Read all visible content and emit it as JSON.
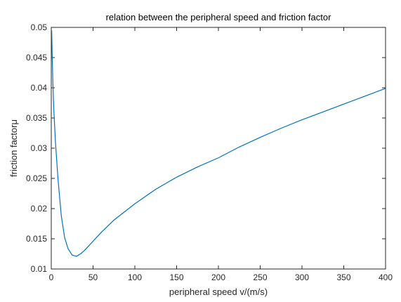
{
  "chart_data": {
    "type": "line",
    "title": "relation between the peripheral speed and friction factor",
    "xlabel": "peripheral speed v/(m/s)",
    "ylabel": "friction factorμ",
    "xlim": [
      0,
      400
    ],
    "ylim": [
      0.01,
      0.05
    ],
    "xticks": [
      0,
      50,
      100,
      150,
      200,
      250,
      300,
      350,
      400
    ],
    "yticks": [
      0.01,
      0.015,
      0.02,
      0.025,
      0.03,
      0.035,
      0.04,
      0.045,
      0.05
    ],
    "xtick_labels": [
      "0",
      "50",
      "100",
      "150",
      "200",
      "250",
      "300",
      "350",
      "400"
    ],
    "ytick_labels": [
      "0.01",
      "0.015",
      "0.02",
      "0.025",
      "0.03",
      "0.035",
      "0.04",
      "0.045",
      "0.05"
    ],
    "grid": false,
    "series": [
      {
        "color": "#0072bd",
        "x": [
          0.5,
          1,
          2,
          3,
          5,
          8,
          12,
          16,
          20,
          25,
          30,
          35,
          40,
          50,
          60,
          75,
          100,
          125,
          150,
          175,
          200,
          225,
          250,
          275,
          300,
          325,
          350,
          375,
          400
        ],
        "y": [
          0.0495,
          0.046,
          0.0405,
          0.0365,
          0.031,
          0.025,
          0.0188,
          0.0152,
          0.0134,
          0.0123,
          0.0121,
          0.0125,
          0.0131,
          0.0146,
          0.0161,
          0.0181,
          0.0208,
          0.0232,
          0.0252,
          0.0269,
          0.0284,
          0.0302,
          0.0318,
          0.0333,
          0.0347,
          0.036,
          0.0373,
          0.0386,
          0.0399
        ]
      }
    ]
  }
}
